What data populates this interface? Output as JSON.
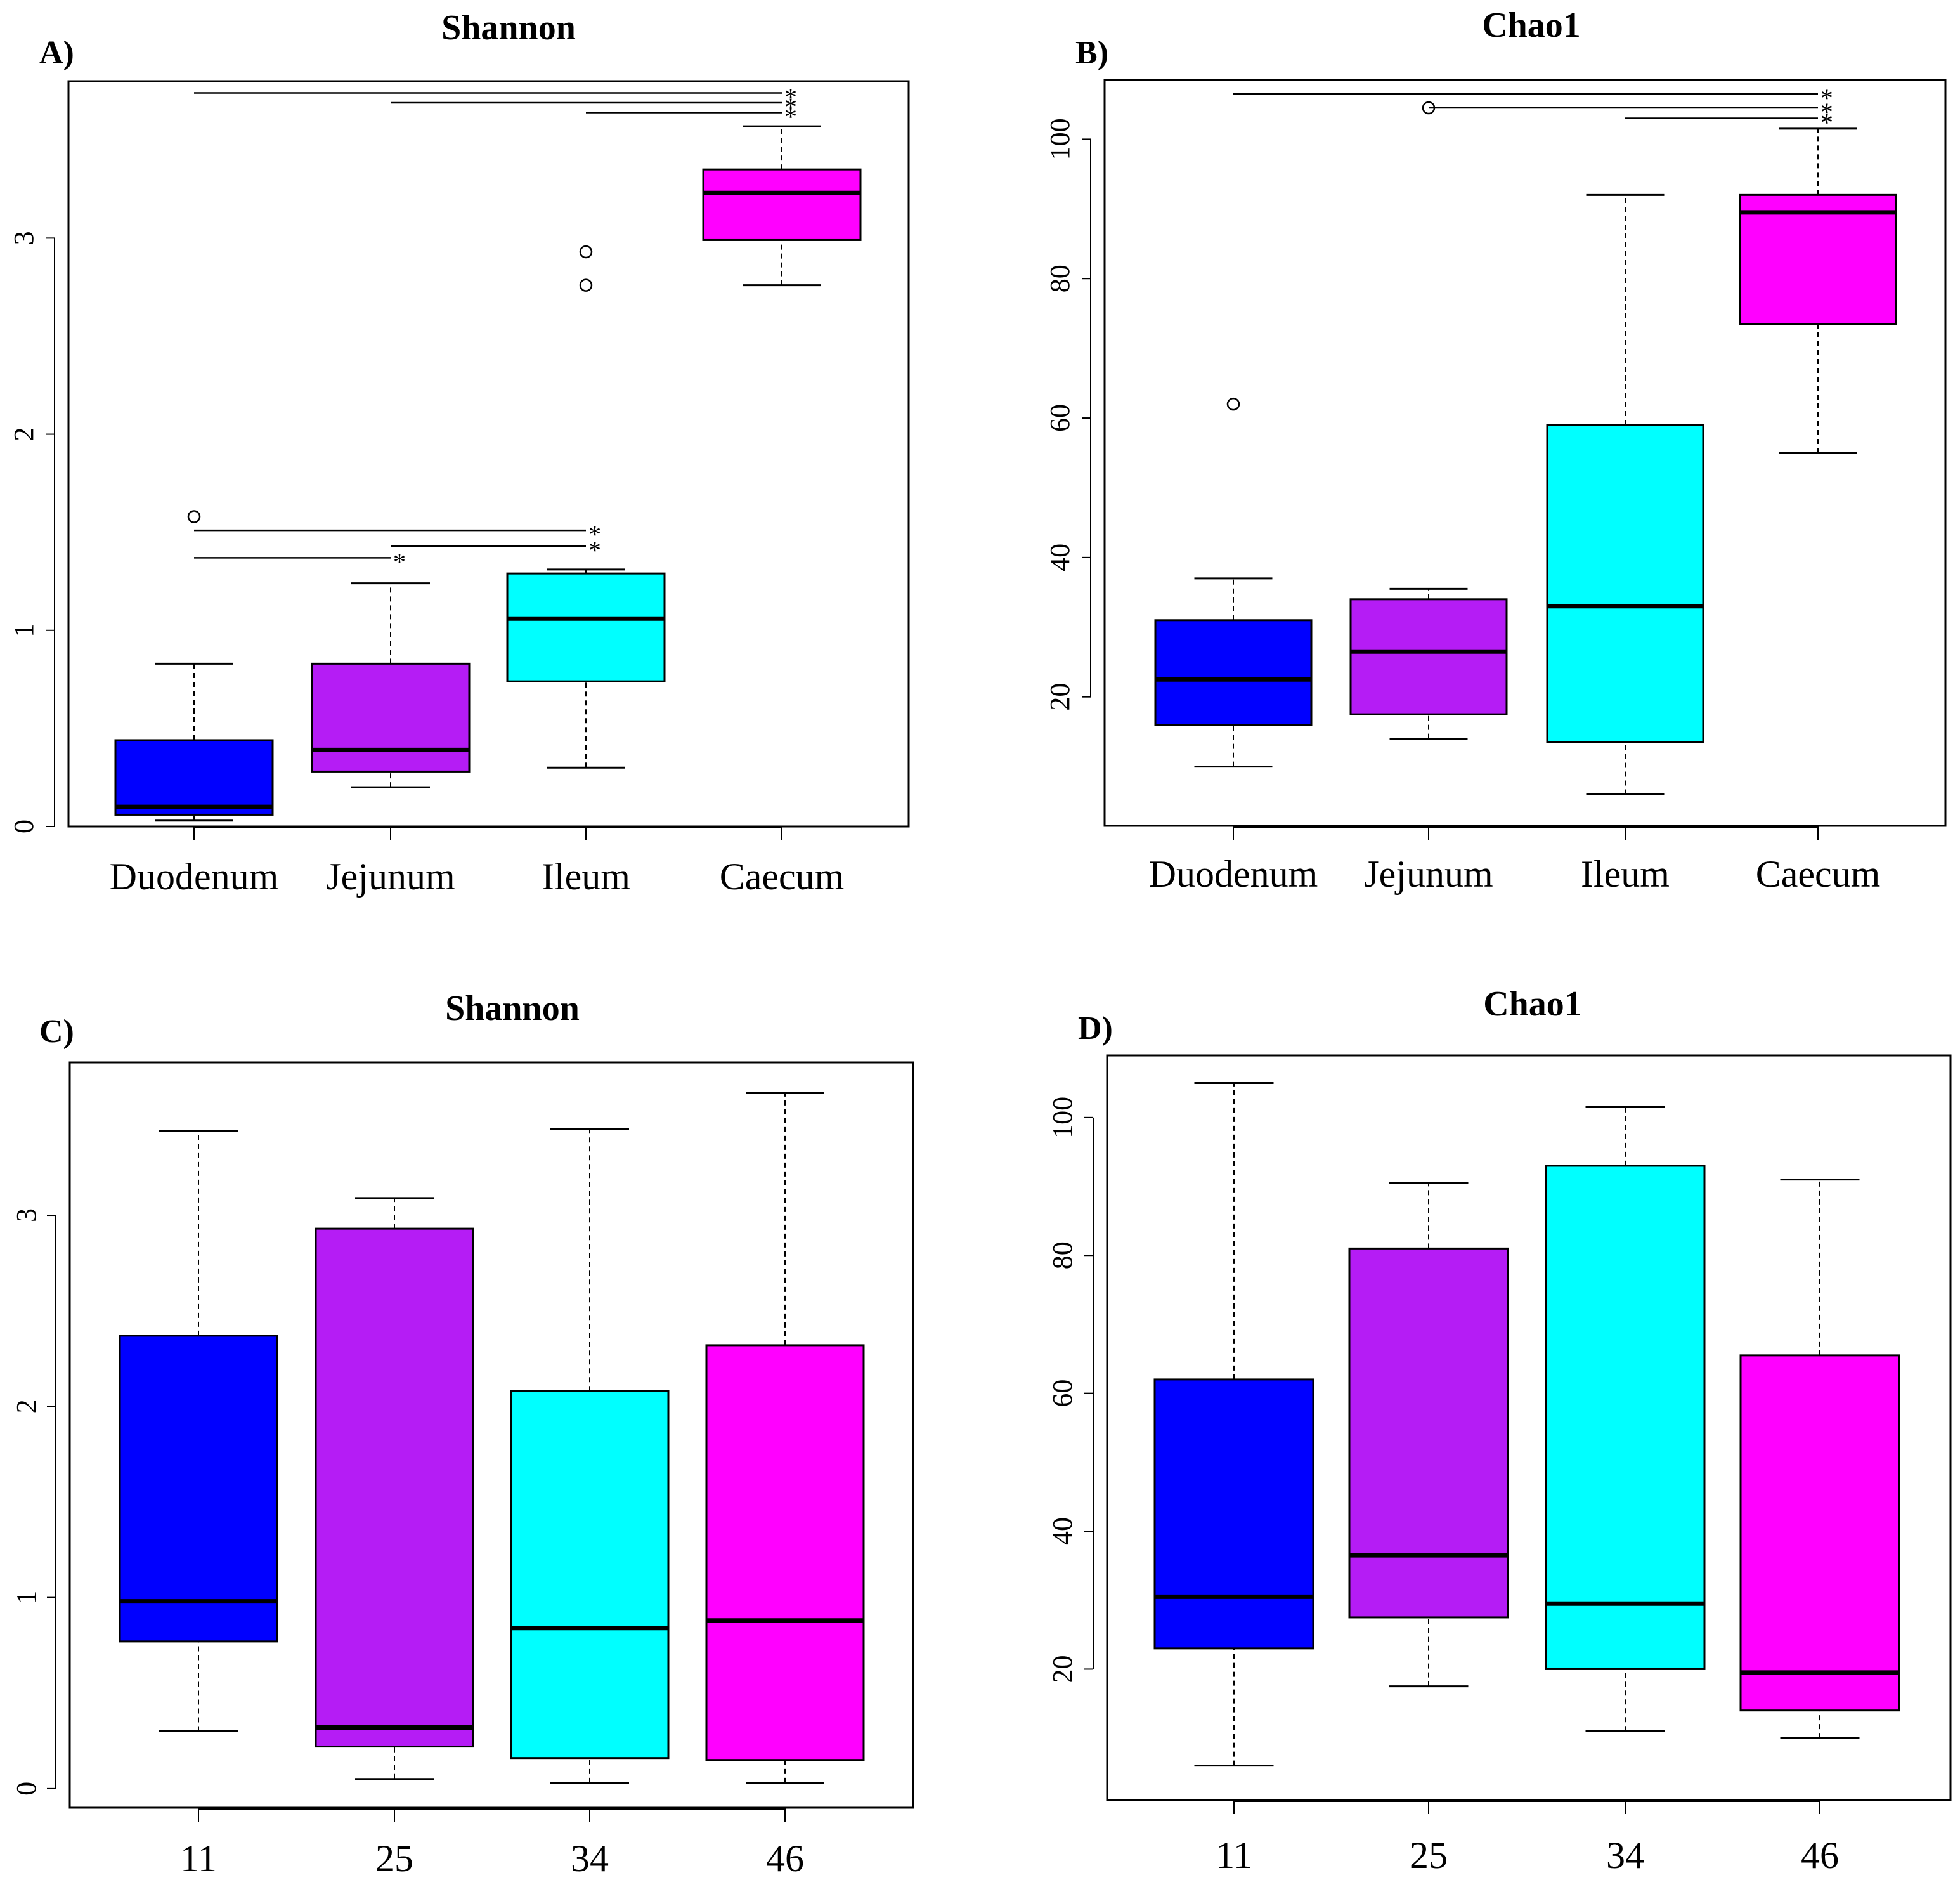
{
  "chart_data": [
    {
      "panel_label": "A)",
      "title": "Shannon",
      "type": "box",
      "categories": [
        "Duodenum",
        "Jejunum",
        "Ileum",
        "Caecum"
      ],
      "ylim": [
        0,
        3.8
      ],
      "yticks": [
        "0",
        "1",
        "2",
        "3"
      ],
      "colors": [
        "#0000FF",
        "#B51CF5",
        "#00FFFF",
        "#FF00FF"
      ],
      "boxes": [
        {
          "whisker_low": 0.03,
          "q1": 0.06,
          "median": 0.1,
          "q3": 0.44,
          "whisker_high": 0.83,
          "outliers": [
            1.58
          ]
        },
        {
          "whisker_low": 0.2,
          "q1": 0.28,
          "median": 0.39,
          "q3": 0.83,
          "whisker_high": 1.24,
          "outliers": []
        },
        {
          "whisker_low": 0.3,
          "q1": 0.74,
          "median": 1.06,
          "q3": 1.29,
          "whisker_high": 1.31,
          "outliers": [
            2.76,
            2.93
          ]
        },
        {
          "whisker_low": 2.76,
          "q1": 2.99,
          "median": 3.23,
          "q3": 3.35,
          "whisker_high": 3.57,
          "outliers": []
        }
      ],
      "significance": [
        {
          "from": 0,
          "to": 3,
          "y": 3.74,
          "label": "*"
        },
        {
          "from": 1,
          "to": 3,
          "y": 3.69,
          "label": "*"
        },
        {
          "from": 2,
          "to": 3,
          "y": 3.64,
          "label": "*"
        },
        {
          "from": 0,
          "to": 2,
          "y": 1.51,
          "label": "*"
        },
        {
          "from": 1,
          "to": 2,
          "y": 1.43,
          "label": "*"
        },
        {
          "from": 0,
          "to": 1,
          "y": 1.37,
          "label": "*"
        }
      ]
    },
    {
      "panel_label": "B)",
      "title": "Chao1",
      "type": "box",
      "categories": [
        "Duodenum",
        "Jejunum",
        "Ileum",
        "Caecum"
      ],
      "ylim": [
        1.5,
        108.5
      ],
      "yticks": [
        "20",
        "40",
        "60",
        "80",
        "100"
      ],
      "colors": [
        "#0000FF",
        "#B51CF5",
        "#00FFFF",
        "#FF00FF"
      ],
      "boxes": [
        {
          "whisker_low": 10,
          "q1": 16,
          "median": 22.5,
          "q3": 31,
          "whisker_high": 37,
          "outliers": [
            62
          ]
        },
        {
          "whisker_low": 14,
          "q1": 17.5,
          "median": 26.5,
          "q3": 34,
          "whisker_high": 35.5,
          "outliers": [
            104.5
          ]
        },
        {
          "whisker_low": 6,
          "q1": 13.5,
          "median": 33,
          "q3": 59,
          "whisker_high": 92,
          "outliers": []
        },
        {
          "whisker_low": 55,
          "q1": 73.5,
          "median": 89.5,
          "q3": 92,
          "whisker_high": 101.5,
          "outliers": []
        }
      ],
      "significance": [
        {
          "from": 0,
          "to": 3,
          "y": 106.5,
          "label": "*"
        },
        {
          "from": 1,
          "to": 3,
          "y": 104.5,
          "label": "*"
        },
        {
          "from": 2,
          "to": 3,
          "y": 103,
          "label": "*"
        }
      ]
    },
    {
      "panel_label": "C)",
      "title": "Shannon",
      "type": "box",
      "categories": [
        "11",
        "25",
        "34",
        "46"
      ],
      "ylim": [
        -0.1,
        3.8
      ],
      "yticks": [
        "0",
        "1",
        "2",
        "3"
      ],
      "colors": [
        "#0000FF",
        "#B51CF5",
        "#00FFFF",
        "#FF00FF"
      ],
      "boxes": [
        {
          "whisker_low": 0.3,
          "q1": 0.77,
          "median": 0.98,
          "q3": 2.37,
          "whisker_high": 3.44,
          "outliers": []
        },
        {
          "whisker_low": 0.05,
          "q1": 0.22,
          "median": 0.32,
          "q3": 2.93,
          "whisker_high": 3.09,
          "outliers": []
        },
        {
          "whisker_low": 0.03,
          "q1": 0.16,
          "median": 0.84,
          "q3": 2.08,
          "whisker_high": 3.45,
          "outliers": []
        },
        {
          "whisker_low": 0.03,
          "q1": 0.15,
          "median": 0.88,
          "q3": 2.32,
          "whisker_high": 3.64,
          "outliers": []
        }
      ],
      "significance": []
    },
    {
      "panel_label": "D)",
      "title": "Chao1",
      "type": "box",
      "categories": [
        "11",
        "25",
        "34",
        "46"
      ],
      "ylim": [
        1,
        109
      ],
      "yticks": [
        "20",
        "40",
        "60",
        "80",
        "100"
      ],
      "colors": [
        "#0000FF",
        "#B51CF5",
        "#00FFFF",
        "#FF00FF"
      ],
      "boxes": [
        {
          "whisker_low": 6,
          "q1": 23,
          "median": 30.5,
          "q3": 62,
          "whisker_high": 105,
          "outliers": []
        },
        {
          "whisker_low": 17.5,
          "q1": 27.5,
          "median": 36.5,
          "q3": 81,
          "whisker_high": 90.5,
          "outliers": []
        },
        {
          "whisker_low": 11,
          "q1": 20,
          "median": 29.5,
          "q3": 93,
          "whisker_high": 101.5,
          "outliers": []
        },
        {
          "whisker_low": 10,
          "q1": 14,
          "median": 19.5,
          "q3": 65.5,
          "whisker_high": 91,
          "outliers": []
        }
      ],
      "significance": []
    }
  ]
}
